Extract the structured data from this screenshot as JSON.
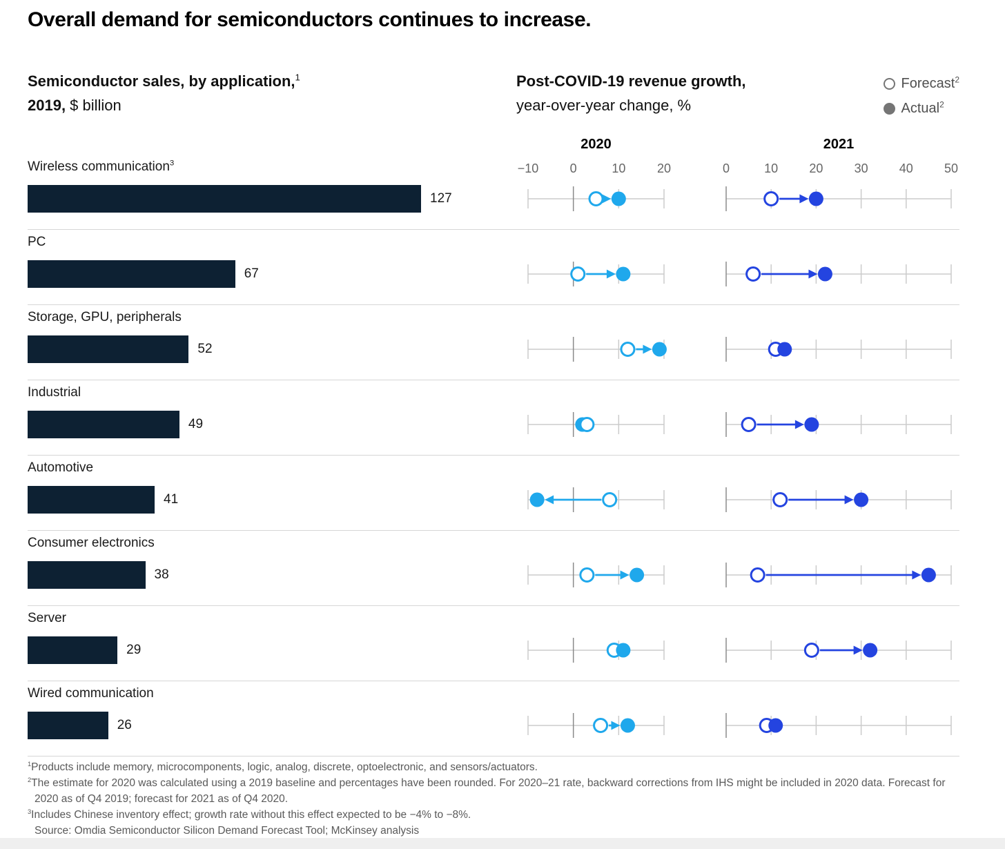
{
  "title": "Overall demand for semiconductors continues to increase.",
  "left_header": {
    "line1_bold": "Semiconductor sales, by application,",
    "line1_sup": "1",
    "line2_bold": "2019,",
    "line2_rest": " $ billion"
  },
  "right_header": {
    "line1": "Post-COVID-19 revenue growth,",
    "line2": "year-over-year change, %"
  },
  "legend": {
    "forecast_label": "Forecast",
    "forecast_sup": "2",
    "actual_label": "Actual",
    "actual_sup": "2"
  },
  "colors": {
    "bar": "#0d2133",
    "year2020": "#1fa8ec",
    "year2021": "#2444e0",
    "legend_gray": "#757575",
    "axis": "#cbcbcb",
    "axis_zero": "#8a8a8a"
  },
  "chart_data": {
    "type": "bar+dumbbell",
    "bar_title": "Semiconductor sales, by application, 2019, $ billion",
    "dumbbell_title": "Post-COVID-19 revenue growth, year-over-year change, %",
    "bar_max": 127,
    "axes": [
      {
        "year": "2020",
        "min": -10,
        "max": 20,
        "ticks": [
          -10,
          0,
          10,
          20
        ]
      },
      {
        "year": "2021",
        "min": 0,
        "max": 50,
        "ticks": [
          0,
          10,
          20,
          30,
          40,
          50
        ]
      }
    ],
    "legend": [
      "Forecast",
      "Actual"
    ],
    "rows": [
      {
        "label": "Wireless communication",
        "label_sup": "3",
        "sales": 127,
        "y2020": {
          "forecast": 5,
          "actual": 10
        },
        "y2021": {
          "forecast": 10,
          "actual": 20
        }
      },
      {
        "label": "PC",
        "sales": 67,
        "y2020": {
          "forecast": 1,
          "actual": 11
        },
        "y2021": {
          "forecast": 6,
          "actual": 22
        }
      },
      {
        "label": "Storage, GPU, peripherals",
        "sales": 52,
        "y2020": {
          "forecast": 12,
          "actual": 19
        },
        "y2021": {
          "forecast": 11,
          "actual": 13
        }
      },
      {
        "label": "Industrial",
        "sales": 49,
        "y2020": {
          "forecast": 3,
          "actual": 2,
          "top": "forecast"
        },
        "y2021": {
          "forecast": 5,
          "actual": 19
        }
      },
      {
        "label": "Automotive",
        "sales": 41,
        "y2020": {
          "forecast": 8,
          "actual": -8
        },
        "y2021": {
          "forecast": 12,
          "actual": 30
        }
      },
      {
        "label": "Consumer electronics",
        "sales": 38,
        "y2020": {
          "forecast": 3,
          "actual": 14
        },
        "y2021": {
          "forecast": 7,
          "actual": 45
        }
      },
      {
        "label": "Server",
        "sales": 29,
        "y2020": {
          "forecast": 9,
          "actual": 11
        },
        "y2021": {
          "forecast": 19,
          "actual": 32
        }
      },
      {
        "label": "Wired communication",
        "sales": 26,
        "y2020": {
          "forecast": 6,
          "actual": 12
        },
        "y2021": {
          "forecast": 9,
          "actual": 11
        }
      }
    ]
  },
  "footnotes": {
    "fn1": {
      "sup": "1",
      "text": "Products include memory, microcomponents, logic, analog, discrete, optoelectronic, and sensors/actuators."
    },
    "fn2": {
      "sup": "2",
      "text": "The estimate for 2020 was calculated using a 2019 baseline and percentages have been rounded. For 2020–21 rate, backward corrections from IHS might be included in 2020 data. Forecast for 2020 as of Q4 2019; forecast for 2021 as of Q4 2020."
    },
    "fn3": {
      "sup": "3",
      "text": "Includes Chinese inventory effect; growth rate without this effect expected to be −4% to −8%."
    },
    "source": "Source: Omdia Semiconductor Silicon Demand Forecast Tool; McKinsey analysis"
  }
}
